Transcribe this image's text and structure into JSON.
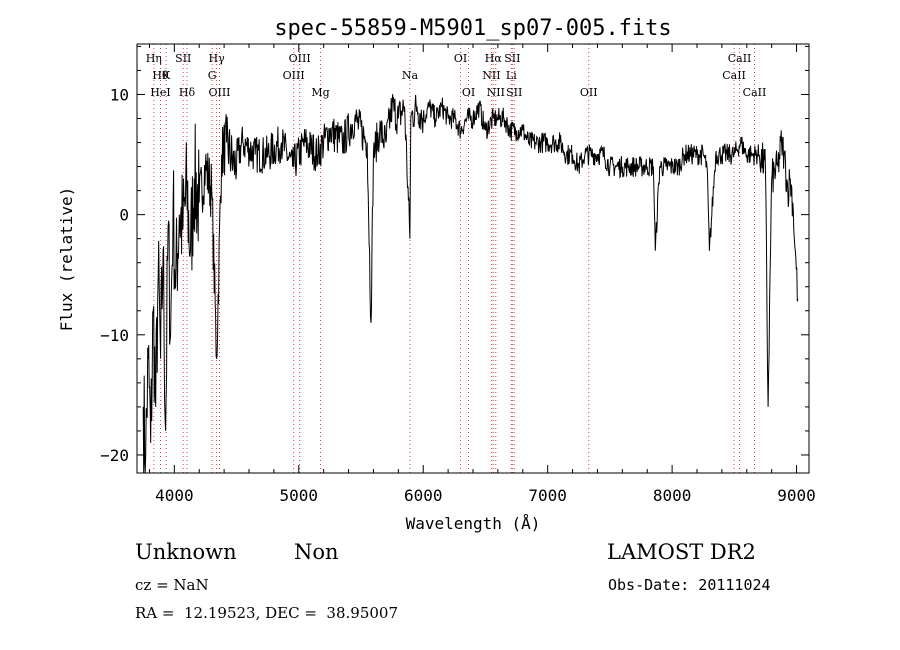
{
  "chart_data": {
    "type": "line",
    "title": "spec-55859-M5901_sp07-005.fits",
    "xlabel": "Wavelength (Å)",
    "ylabel": "Flux (relative)",
    "xlim": [
      3700,
      9100
    ],
    "ylim": [
      -21.5,
      14.2
    ],
    "x_ticks": [
      4000,
      5000,
      6000,
      7000,
      8000,
      9000
    ],
    "y_ticks": [
      -20,
      -10,
      0,
      10
    ],
    "grid": false,
    "line_color": "#000000",
    "marker_color": "#e04040",
    "series": [
      {
        "x": [
          3750,
          3770,
          3790,
          3810,
          3830,
          3850,
          3870,
          3890,
          3910,
          3930,
          3950,
          3970,
          3990,
          4010,
          4040,
          4070,
          4100,
          4130,
          4160,
          4200,
          4250,
          4300,
          4340,
          4380,
          4420,
          4480,
          4550,
          4650,
          4750,
          4860,
          4950,
          5050,
          5150,
          5250,
          5350,
          5450,
          5550,
          5580,
          5600,
          5650,
          5700,
          5750,
          5800,
          5850,
          5893,
          5900,
          5950,
          6000,
          6050,
          6100,
          6150,
          6200,
          6250,
          6300,
          6350,
          6400,
          6450,
          6500,
          6563,
          6600,
          6650,
          6700,
          6750,
          6800,
          6850,
          6900,
          6950,
          7000,
          7050,
          7100,
          7150,
          7200,
          7250,
          7300,
          7350,
          7400,
          7450,
          7500,
          7550,
          7600,
          7650,
          7700,
          7750,
          7800,
          7850,
          7865,
          7900,
          7950,
          8000,
          8050,
          8100,
          8150,
          8200,
          8250,
          8280,
          8300,
          8350,
          8400,
          8450,
          8500,
          8550,
          8600,
          8650,
          8700,
          8750,
          8771,
          8800,
          8850,
          8880,
          8900,
          8930,
          8950,
          8970,
          8990,
          9010
        ],
        "y": [
          -16,
          -20,
          -12,
          -19,
          -8,
          -16,
          -5,
          -12,
          -3,
          -18,
          -1,
          -10,
          1,
          -6,
          0,
          -1,
          2,
          -3,
          3,
          1,
          4,
          2,
          -12,
          5,
          6,
          4,
          6,
          5,
          5,
          6,
          4,
          6,
          5,
          7,
          6,
          8,
          6,
          -9,
          5,
          7,
          6,
          9,
          8,
          9,
          -2,
          8,
          9,
          8,
          9,
          8,
          9,
          8,
          8,
          7,
          8,
          8,
          9,
          7,
          8,
          8,
          8,
          7,
          7,
          7,
          6,
          6,
          6,
          6,
          6,
          6,
          5,
          5,
          4,
          5,
          5,
          5,
          5,
          4,
          4,
          4,
          4,
          4,
          4,
          4,
          4,
          -3,
          4,
          4,
          4,
          4,
          5,
          5,
          5,
          5,
          4,
          -3,
          5,
          5,
          5,
          5,
          6,
          5,
          5,
          5,
          4,
          -16,
          3,
          4,
          6,
          5,
          2,
          3,
          1,
          -3,
          -7
        ]
      }
    ],
    "lines": [
      {
        "x": 3835,
        "name": "Hη",
        "row": 1
      },
      {
        "x": 3889,
        "name": "Hθ",
        "row": 2
      },
      {
        "x": 3934,
        "name": "K",
        "row": 2
      },
      {
        "x": 3889,
        "name": "HeI",
        "row": 3
      },
      {
        "x": 4072,
        "name": "SII",
        "row": 1
      },
      {
        "x": 4102,
        "name": "Hδ",
        "row": 3
      },
      {
        "x": 4304,
        "name": "G",
        "row": 2
      },
      {
        "x": 4340,
        "name": "Hγ",
        "row": 1
      },
      {
        "x": 4363,
        "name": "OIII",
        "row": 3
      },
      {
        "x": 4959,
        "name": "OIII",
        "row": 2
      },
      {
        "x": 5007,
        "name": "OIII",
        "row": 1
      },
      {
        "x": 5175,
        "name": "Mg",
        "row": 3
      },
      {
        "x": 5893,
        "name": "Na",
        "row": 2
      },
      {
        "x": 6300,
        "name": "OI",
        "row": 1
      },
      {
        "x": 6364,
        "name": "OI",
        "row": 3
      },
      {
        "x": 6548,
        "name": "NII",
        "row": 2
      },
      {
        "x": 6563,
        "name": "Hα",
        "row": 1
      },
      {
        "x": 6583,
        "name": "NII",
        "row": 3
      },
      {
        "x": 6708,
        "name": "Li",
        "row": 2
      },
      {
        "x": 6716,
        "name": "SII",
        "row": 1
      },
      {
        "x": 6731,
        "name": "SII",
        "row": 3
      },
      {
        "x": 7330,
        "name": "OII",
        "row": 3
      },
      {
        "x": 8498,
        "name": "CaII",
        "row": 2
      },
      {
        "x": 8542,
        "name": "CaII",
        "row": 1
      },
      {
        "x": 8662,
        "name": "CaII",
        "row": 3
      }
    ]
  },
  "footer": {
    "class_label": "Unknown",
    "subclass_label": "Non",
    "survey_label": "LAMOST DR2",
    "cz_text": "cz = NaN",
    "obs_date_text": "Obs-Date: 20111024",
    "radec_text": "RA =  12.19523, DEC =  38.95007"
  }
}
